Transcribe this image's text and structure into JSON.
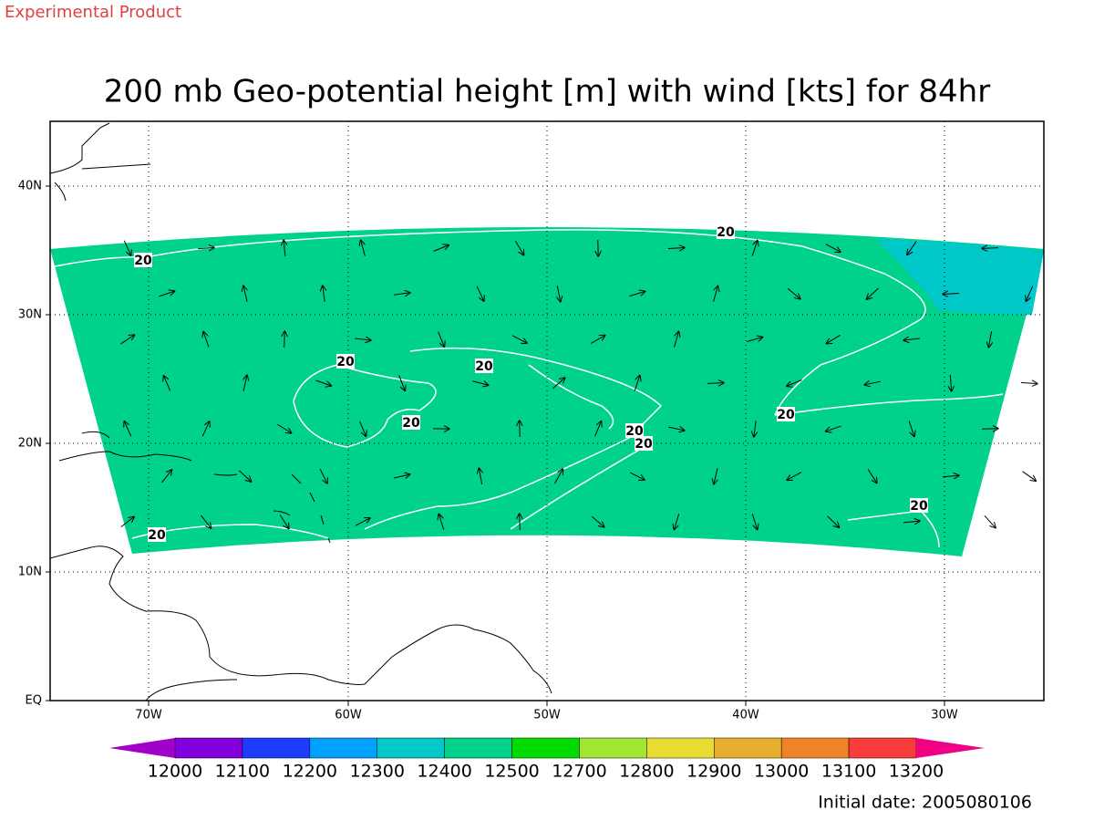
{
  "header": {
    "product_note": "Experimental Product",
    "title": "200 mb Geo-potential height [m] with wind [kts] for 84hr"
  },
  "map": {
    "lat_labels": [
      "40N",
      "30N",
      "20N",
      "10N",
      "EQ"
    ],
    "lon_labels": [
      "70W",
      "60W",
      "50W",
      "40W",
      "30W"
    ],
    "contour_labels": [
      "20",
      "20",
      "20",
      "20",
      "20",
      "20",
      "20",
      "20",
      "20",
      "20"
    ]
  },
  "colorbar": {
    "levels": [
      12000,
      12100,
      12200,
      12300,
      12400,
      12500,
      12700,
      12800,
      12900,
      13000,
      13100,
      13200
    ],
    "colors": [
      "#a000c8",
      "#8200dc",
      "#1e3cff",
      "#00a0ff",
      "#00c8c8",
      "#00d28c",
      "#00dc00",
      "#a0e632",
      "#e6dc32",
      "#e6af2d",
      "#f08228",
      "#fa3c3c",
      "#f00082"
    ]
  },
  "footer": {
    "initial_date": "Initial date: 2005080106"
  }
}
